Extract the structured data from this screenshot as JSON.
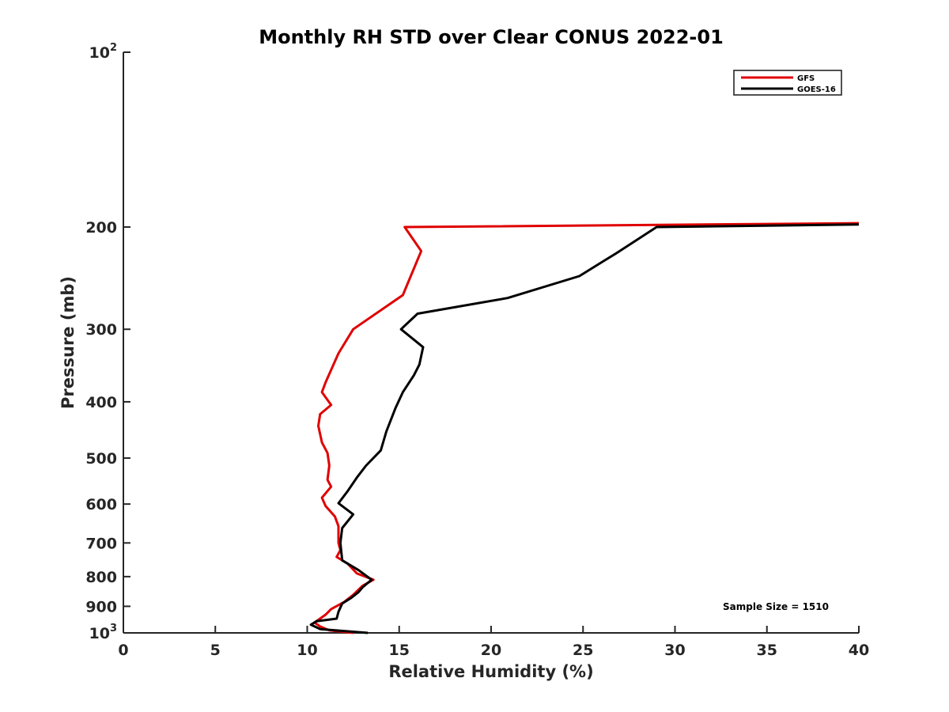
{
  "chart_data": {
    "type": "line",
    "title": "Monthly RH STD over Clear CONUS  2022-01",
    "xlabel": "Relative Humidity (%)",
    "ylabel": "Pressure (mb)",
    "xlim": [
      0,
      40
    ],
    "ylim": [
      100,
      1000
    ],
    "yscale": "log",
    "y_reversed": true,
    "grid": false,
    "legend_position": "top-right",
    "x_ticks": [
      "0",
      "5",
      "10",
      "15",
      "20",
      "25",
      "30",
      "35",
      "40"
    ],
    "y_ticks": [
      {
        "value": 100,
        "base": "10",
        "exp": "2"
      },
      {
        "value": 200,
        "label": "200"
      },
      {
        "value": 300,
        "label": "300"
      },
      {
        "value": 400,
        "label": "400"
      },
      {
        "value": 500,
        "label": "500"
      },
      {
        "value": 600,
        "label": "600"
      },
      {
        "value": 700,
        "label": "700"
      },
      {
        "value": 800,
        "label": "800"
      },
      {
        "value": 900,
        "label": "900"
      },
      {
        "value": 1000,
        "base": "10",
        "exp": "3"
      }
    ],
    "series": [
      {
        "name": "GFS",
        "color": "#e00000",
        "points": [
          [
            40,
            197
          ],
          [
            15.3,
            200
          ],
          [
            16.2,
            220
          ],
          [
            15.2,
            262
          ],
          [
            12.5,
            300
          ],
          [
            11.7,
            330
          ],
          [
            11.0,
            370
          ],
          [
            10.8,
            385
          ],
          [
            11.3,
            405
          ],
          [
            10.7,
            420
          ],
          [
            10.6,
            440
          ],
          [
            10.8,
            470
          ],
          [
            11.1,
            490
          ],
          [
            11.2,
            515
          ],
          [
            11.1,
            545
          ],
          [
            11.3,
            560
          ],
          [
            10.8,
            585
          ],
          [
            11.0,
            605
          ],
          [
            11.5,
            630
          ],
          [
            11.7,
            655
          ],
          [
            11.7,
            700
          ],
          [
            11.8,
            720
          ],
          [
            11.6,
            740
          ],
          [
            12.2,
            760
          ],
          [
            12.7,
            790
          ],
          [
            13.6,
            810
          ],
          [
            13.0,
            830
          ],
          [
            12.5,
            860
          ],
          [
            12.0,
            885
          ],
          [
            11.3,
            910
          ],
          [
            11.0,
            930
          ],
          [
            10.4,
            960
          ],
          [
            10.7,
            975
          ],
          [
            11.2,
            990
          ],
          [
            12.5,
            1000
          ]
        ]
      },
      {
        "name": "GOES-16",
        "color": "#000000",
        "points": [
          [
            40,
            198
          ],
          [
            29.0,
            200
          ],
          [
            26.8,
            222
          ],
          [
            24.8,
            243
          ],
          [
            20.9,
            265
          ],
          [
            16.0,
            282
          ],
          [
            15.1,
            300
          ],
          [
            16.3,
            322
          ],
          [
            16.1,
            345
          ],
          [
            15.8,
            360
          ],
          [
            15.2,
            385
          ],
          [
            14.8,
            410
          ],
          [
            14.3,
            450
          ],
          [
            14.0,
            485
          ],
          [
            13.2,
            515
          ],
          [
            12.7,
            540
          ],
          [
            12.2,
            570
          ],
          [
            11.7,
            598
          ],
          [
            12.5,
            625
          ],
          [
            11.9,
            660
          ],
          [
            11.8,
            700
          ],
          [
            11.9,
            750
          ],
          [
            12.8,
            780
          ],
          [
            13.5,
            810
          ],
          [
            13.0,
            835
          ],
          [
            12.8,
            850
          ],
          [
            12.4,
            870
          ],
          [
            11.9,
            890
          ],
          [
            11.7,
            920
          ],
          [
            11.6,
            945
          ],
          [
            10.5,
            955
          ],
          [
            10.2,
            968
          ],
          [
            10.7,
            985
          ],
          [
            13.3,
            1000
          ]
        ]
      }
    ],
    "annotations": [
      "Sample Size = 1510"
    ]
  }
}
